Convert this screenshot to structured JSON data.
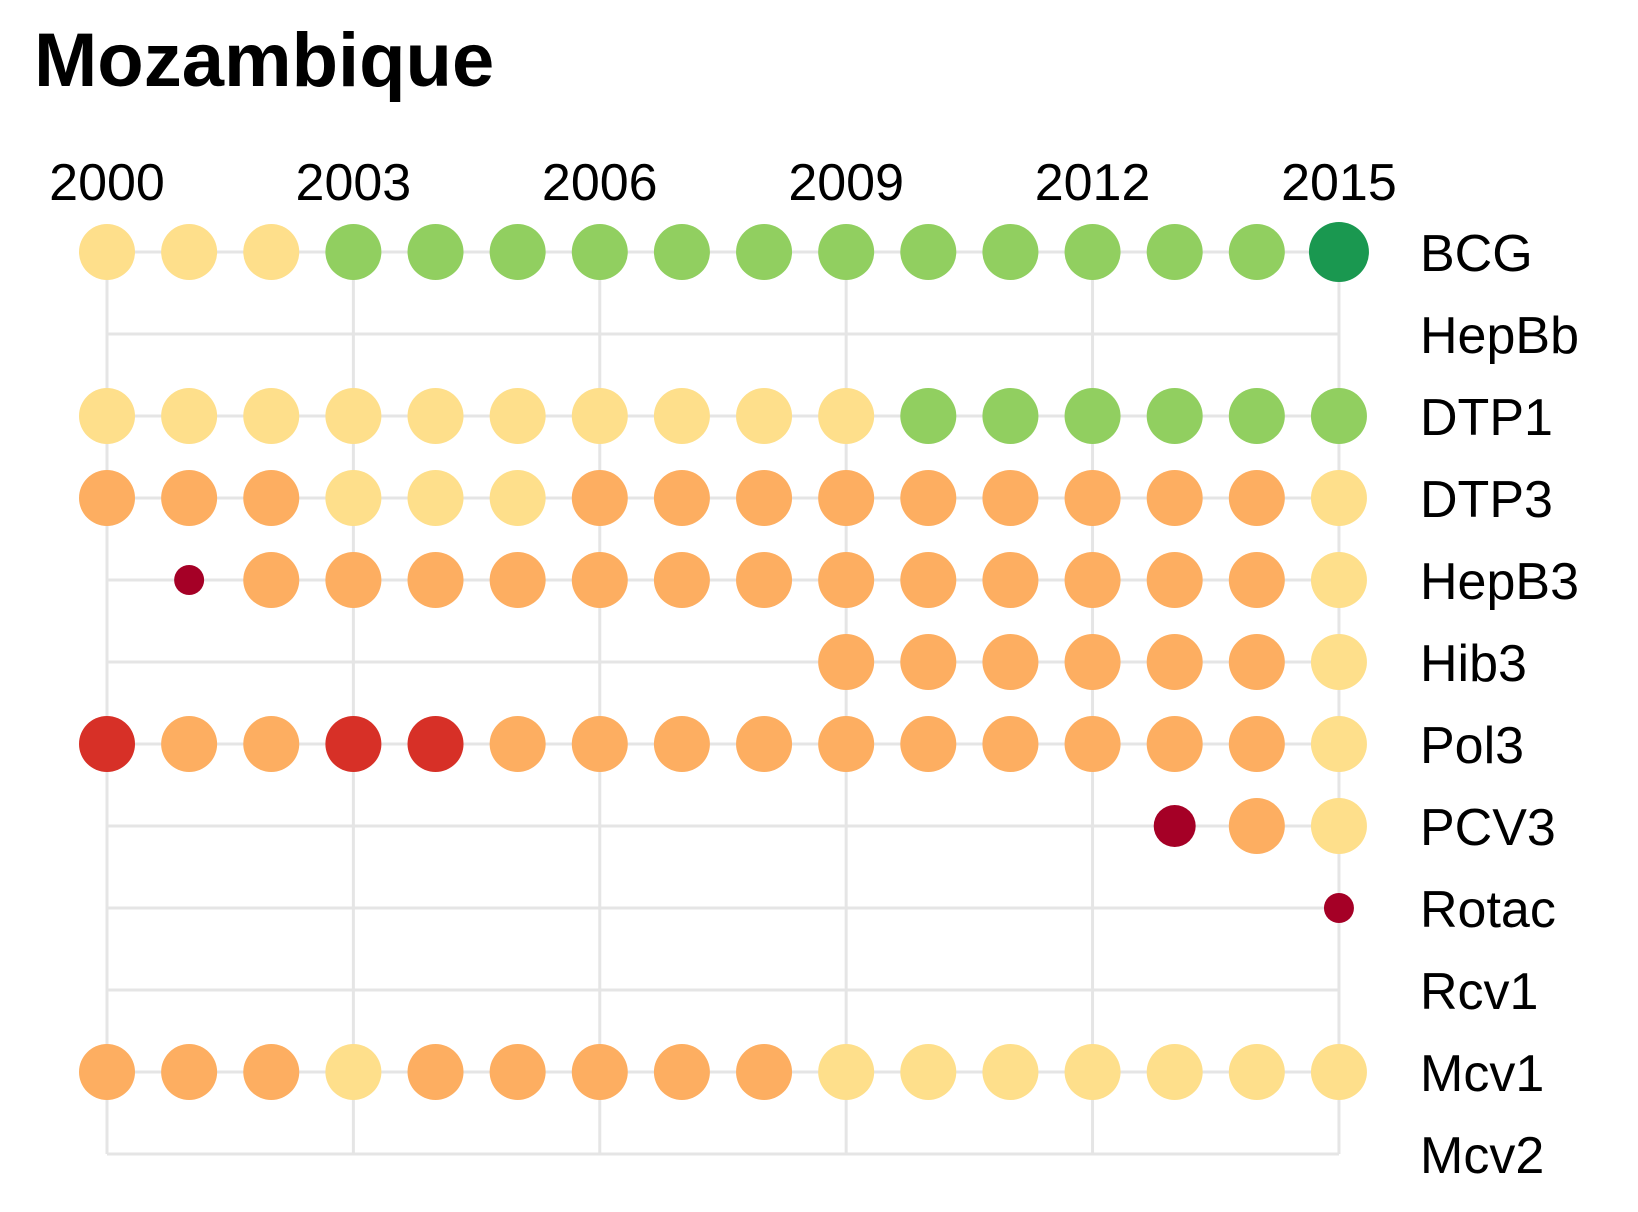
{
  "chart_data": {
    "type": "scatter",
    "title": "Mozambique",
    "x_ticks": [
      2000,
      2003,
      2006,
      2009,
      2012,
      2015
    ],
    "years": [
      2000,
      2001,
      2002,
      2003,
      2004,
      2005,
      2006,
      2007,
      2008,
      2009,
      2010,
      2011,
      2012,
      2013,
      2014,
      2015
    ],
    "vaccines": [
      "BCG",
      "HepBb",
      "DTP1",
      "DTP3",
      "HepB3",
      "Hib3",
      "Pol3",
      "PCV3",
      "Rotac",
      "Rcv1",
      "Mcv1",
      "Mcv2"
    ],
    "legend": "none",
    "grid": true,
    "colors": {
      "yellow": "#fedf8b",
      "light_green": "#91cf60",
      "dark_green": "#1a9850",
      "orange": "#fdae61",
      "red": "#d73027",
      "dark_red": "#a50026"
    },
    "rows": [
      {
        "vaccine": "BCG",
        "cells": [
          {
            "year": 2000,
            "color": "yellow",
            "size": "large"
          },
          {
            "year": 2001,
            "color": "yellow",
            "size": "large"
          },
          {
            "year": 2002,
            "color": "yellow",
            "size": "large"
          },
          {
            "year": 2003,
            "color": "light_green",
            "size": "large"
          },
          {
            "year": 2004,
            "color": "light_green",
            "size": "large"
          },
          {
            "year": 2005,
            "color": "light_green",
            "size": "large"
          },
          {
            "year": 2006,
            "color": "light_green",
            "size": "large"
          },
          {
            "year": 2007,
            "color": "light_green",
            "size": "large"
          },
          {
            "year": 2008,
            "color": "light_green",
            "size": "large"
          },
          {
            "year": 2009,
            "color": "light_green",
            "size": "large"
          },
          {
            "year": 2010,
            "color": "light_green",
            "size": "large"
          },
          {
            "year": 2011,
            "color": "light_green",
            "size": "large"
          },
          {
            "year": 2012,
            "color": "light_green",
            "size": "large"
          },
          {
            "year": 2013,
            "color": "light_green",
            "size": "large"
          },
          {
            "year": 2014,
            "color": "light_green",
            "size": "large"
          },
          {
            "year": 2015,
            "color": "dark_green",
            "size": "xlarge"
          }
        ]
      },
      {
        "vaccine": "HepBb",
        "cells": []
      },
      {
        "vaccine": "DTP1",
        "cells": [
          {
            "year": 2000,
            "color": "yellow",
            "size": "large"
          },
          {
            "year": 2001,
            "color": "yellow",
            "size": "large"
          },
          {
            "year": 2002,
            "color": "yellow",
            "size": "large"
          },
          {
            "year": 2003,
            "color": "yellow",
            "size": "large"
          },
          {
            "year": 2004,
            "color": "yellow",
            "size": "large"
          },
          {
            "year": 2005,
            "color": "yellow",
            "size": "large"
          },
          {
            "year": 2006,
            "color": "yellow",
            "size": "large"
          },
          {
            "year": 2007,
            "color": "yellow",
            "size": "large"
          },
          {
            "year": 2008,
            "color": "yellow",
            "size": "large"
          },
          {
            "year": 2009,
            "color": "yellow",
            "size": "large"
          },
          {
            "year": 2010,
            "color": "light_green",
            "size": "large"
          },
          {
            "year": 2011,
            "color": "light_green",
            "size": "large"
          },
          {
            "year": 2012,
            "color": "light_green",
            "size": "large"
          },
          {
            "year": 2013,
            "color": "light_green",
            "size": "large"
          },
          {
            "year": 2014,
            "color": "light_green",
            "size": "large"
          },
          {
            "year": 2015,
            "color": "light_green",
            "size": "large"
          }
        ]
      },
      {
        "vaccine": "DTP3",
        "cells": [
          {
            "year": 2000,
            "color": "orange",
            "size": "large"
          },
          {
            "year": 2001,
            "color": "orange",
            "size": "large"
          },
          {
            "year": 2002,
            "color": "orange",
            "size": "large"
          },
          {
            "year": 2003,
            "color": "yellow",
            "size": "large"
          },
          {
            "year": 2004,
            "color": "yellow",
            "size": "large"
          },
          {
            "year": 2005,
            "color": "yellow",
            "size": "large"
          },
          {
            "year": 2006,
            "color": "orange",
            "size": "large"
          },
          {
            "year": 2007,
            "color": "orange",
            "size": "large"
          },
          {
            "year": 2008,
            "color": "orange",
            "size": "large"
          },
          {
            "year": 2009,
            "color": "orange",
            "size": "large"
          },
          {
            "year": 2010,
            "color": "orange",
            "size": "large"
          },
          {
            "year": 2011,
            "color": "orange",
            "size": "large"
          },
          {
            "year": 2012,
            "color": "orange",
            "size": "large"
          },
          {
            "year": 2013,
            "color": "orange",
            "size": "large"
          },
          {
            "year": 2014,
            "color": "orange",
            "size": "large"
          },
          {
            "year": 2015,
            "color": "yellow",
            "size": "large"
          }
        ]
      },
      {
        "vaccine": "HepB3",
        "cells": [
          {
            "year": 2001,
            "color": "dark_red",
            "size": "small"
          },
          {
            "year": 2002,
            "color": "orange",
            "size": "large"
          },
          {
            "year": 2003,
            "color": "orange",
            "size": "large"
          },
          {
            "year": 2004,
            "color": "orange",
            "size": "large"
          },
          {
            "year": 2005,
            "color": "orange",
            "size": "large"
          },
          {
            "year": 2006,
            "color": "orange",
            "size": "large"
          },
          {
            "year": 2007,
            "color": "orange",
            "size": "large"
          },
          {
            "year": 2008,
            "color": "orange",
            "size": "large"
          },
          {
            "year": 2009,
            "color": "orange",
            "size": "large"
          },
          {
            "year": 2010,
            "color": "orange",
            "size": "large"
          },
          {
            "year": 2011,
            "color": "orange",
            "size": "large"
          },
          {
            "year": 2012,
            "color": "orange",
            "size": "large"
          },
          {
            "year": 2013,
            "color": "orange",
            "size": "large"
          },
          {
            "year": 2014,
            "color": "orange",
            "size": "large"
          },
          {
            "year": 2015,
            "color": "yellow",
            "size": "large"
          }
        ]
      },
      {
        "vaccine": "Hib3",
        "cells": [
          {
            "year": 2009,
            "color": "orange",
            "size": "large"
          },
          {
            "year": 2010,
            "color": "orange",
            "size": "large"
          },
          {
            "year": 2011,
            "color": "orange",
            "size": "large"
          },
          {
            "year": 2012,
            "color": "orange",
            "size": "large"
          },
          {
            "year": 2013,
            "color": "orange",
            "size": "large"
          },
          {
            "year": 2014,
            "color": "orange",
            "size": "large"
          },
          {
            "year": 2015,
            "color": "yellow",
            "size": "large"
          }
        ]
      },
      {
        "vaccine": "Pol3",
        "cells": [
          {
            "year": 2000,
            "color": "red",
            "size": "large"
          },
          {
            "year": 2001,
            "color": "orange",
            "size": "large"
          },
          {
            "year": 2002,
            "color": "orange",
            "size": "large"
          },
          {
            "year": 2003,
            "color": "red",
            "size": "large"
          },
          {
            "year": 2004,
            "color": "red",
            "size": "large"
          },
          {
            "year": 2005,
            "color": "orange",
            "size": "large"
          },
          {
            "year": 2006,
            "color": "orange",
            "size": "large"
          },
          {
            "year": 2007,
            "color": "orange",
            "size": "large"
          },
          {
            "year": 2008,
            "color": "orange",
            "size": "large"
          },
          {
            "year": 2009,
            "color": "orange",
            "size": "large"
          },
          {
            "year": 2010,
            "color": "orange",
            "size": "large"
          },
          {
            "year": 2011,
            "color": "orange",
            "size": "large"
          },
          {
            "year": 2012,
            "color": "orange",
            "size": "large"
          },
          {
            "year": 2013,
            "color": "orange",
            "size": "large"
          },
          {
            "year": 2014,
            "color": "orange",
            "size": "large"
          },
          {
            "year": 2015,
            "color": "yellow",
            "size": "large"
          }
        ]
      },
      {
        "vaccine": "PCV3",
        "cells": [
          {
            "year": 2013,
            "color": "dark_red",
            "size": "medium"
          },
          {
            "year": 2014,
            "color": "orange",
            "size": "large"
          },
          {
            "year": 2015,
            "color": "yellow",
            "size": "large"
          }
        ]
      },
      {
        "vaccine": "Rotac",
        "cells": [
          {
            "year": 2015,
            "color": "dark_red",
            "size": "small"
          }
        ]
      },
      {
        "vaccine": "Rcv1",
        "cells": []
      },
      {
        "vaccine": "Mcv1",
        "cells": [
          {
            "year": 2000,
            "color": "orange",
            "size": "large"
          },
          {
            "year": 2001,
            "color": "orange",
            "size": "large"
          },
          {
            "year": 2002,
            "color": "orange",
            "size": "large"
          },
          {
            "year": 2003,
            "color": "yellow",
            "size": "large"
          },
          {
            "year": 2004,
            "color": "orange",
            "size": "large"
          },
          {
            "year": 2005,
            "color": "orange",
            "size": "large"
          },
          {
            "year": 2006,
            "color": "orange",
            "size": "large"
          },
          {
            "year": 2007,
            "color": "orange",
            "size": "large"
          },
          {
            "year": 2008,
            "color": "orange",
            "size": "large"
          },
          {
            "year": 2009,
            "color": "yellow",
            "size": "large"
          },
          {
            "year": 2010,
            "color": "yellow",
            "size": "large"
          },
          {
            "year": 2011,
            "color": "yellow",
            "size": "large"
          },
          {
            "year": 2012,
            "color": "yellow",
            "size": "large"
          },
          {
            "year": 2013,
            "color": "yellow",
            "size": "large"
          },
          {
            "year": 2014,
            "color": "yellow",
            "size": "large"
          },
          {
            "year": 2015,
            "color": "yellow",
            "size": "large"
          }
        ]
      },
      {
        "vaccine": "Mcv2",
        "cells": []
      }
    ]
  }
}
